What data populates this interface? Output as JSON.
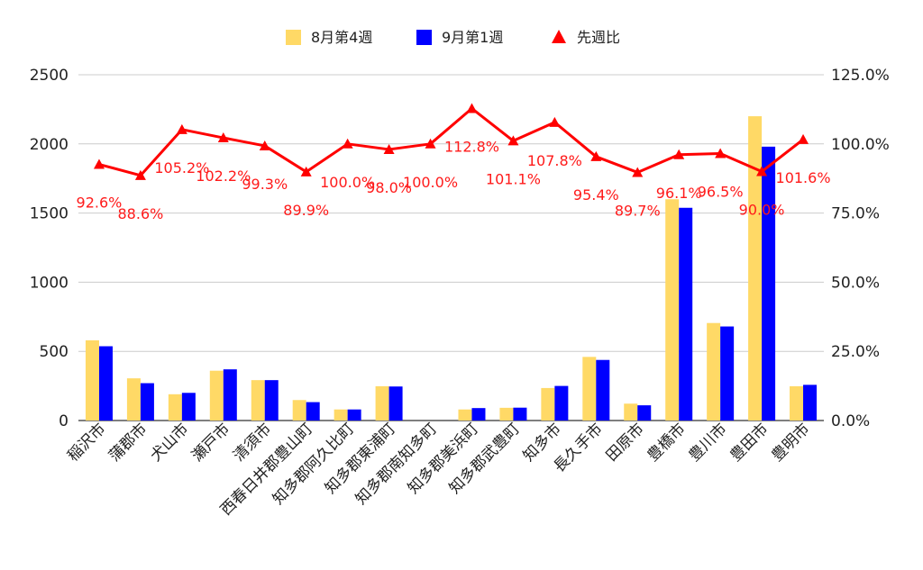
{
  "chart_data": {
    "type": "bar",
    "categories": [
      "稲沢市",
      "蒲郡市",
      "犬山市",
      "瀬戸市",
      "清須市",
      "西春日井郡豊山町",
      "知多郡阿久比町",
      "知多郡東浦町",
      "知多郡南知多町",
      "知多郡美浜町",
      "知多郡武豊町",
      "知多市",
      "長久手市",
      "田原市",
      "豊橋市",
      "豊川市",
      "豊田市",
      "豊明市"
    ],
    "series": [
      {
        "name": "8月第4週",
        "type": "bar",
        "axis": "left",
        "color": "#ffd966",
        "values": [
          580,
          305,
          190,
          360,
          292,
          148,
          80,
          248,
          0,
          80,
          92,
          235,
          460,
          122,
          1600,
          705,
          2200,
          248
        ]
      },
      {
        "name": "9月第1週",
        "type": "bar",
        "axis": "left",
        "color": "#0000ff",
        "values": [
          537,
          270,
          200,
          370,
          292,
          133,
          80,
          246,
          0,
          90,
          93,
          250,
          438,
          110,
          1538,
          680,
          1980,
          258
        ]
      },
      {
        "name": "先週比",
        "type": "line",
        "axis": "right",
        "color": "#ff0000",
        "values": [
          92.6,
          88.6,
          105.2,
          102.2,
          99.3,
          89.9,
          100.0,
          98.0,
          100.0,
          112.8,
          101.1,
          107.8,
          95.4,
          89.7,
          96.1,
          96.5,
          90.0,
          101.6
        ],
        "labels": [
          "92.6%",
          "88.6%",
          "105.2%",
          "102.2%",
          "99.3%",
          "89.9%",
          "100.0%",
          "98.0%",
          "100.0%",
          "112.8%",
          "101.1%",
          "107.8%",
          "95.4%",
          "89.7%",
          "96.1%",
          "96.5%",
          "90.0%",
          "101.6%"
        ]
      }
    ],
    "ylim_left": [
      0,
      2500
    ],
    "left_ticks": [
      "0",
      "500",
      "1000",
      "1500",
      "2000",
      "2500"
    ],
    "ylim_right": [
      0,
      125
    ],
    "right_ticks": [
      "0.0%",
      "25.0%",
      "50.0%",
      "75.0%",
      "100.0%",
      "125.0%"
    ],
    "grid": true,
    "legend_position": "top"
  },
  "legend": {
    "items": [
      {
        "label": "8月第4週",
        "color": "#ffd966",
        "marker": "square"
      },
      {
        "label": "9月第1週",
        "color": "#0000ff",
        "marker": "square"
      },
      {
        "label": "先週比",
        "color": "#ff0000",
        "marker": "triangle"
      }
    ]
  }
}
